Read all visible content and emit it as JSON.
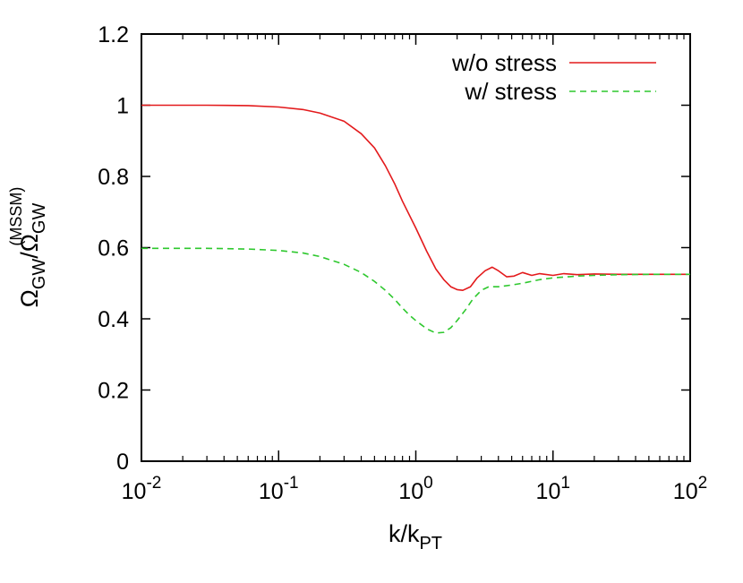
{
  "chart_data": {
    "type": "line",
    "xscale": "log",
    "xlim": [
      0.01,
      100
    ],
    "ylim": [
      0,
      1.2
    ],
    "y_ticks": [
      "0",
      "0.2",
      "0.4",
      "0.6",
      "0.8",
      "1",
      "1.2"
    ],
    "x_ticks": [
      {
        "base": "10",
        "exp": "-2"
      },
      {
        "base": "10",
        "exp": "-1"
      },
      {
        "base": "10",
        "exp": "0"
      },
      {
        "base": "10",
        "exp": "1"
      },
      {
        "base": "10",
        "exp": "2"
      }
    ],
    "xlabel": {
      "main": "k/k",
      "sub": "PT"
    },
    "ylabel": {
      "a": "Ω",
      "a_sub": "GW",
      "slash": "/Ω",
      "b_sub": "GW",
      "b_sup": "(MSSM)"
    },
    "legend_position": "top-right",
    "grid": false,
    "series": [
      {
        "name": "w/o stress",
        "color": "#e31a1c",
        "dash": "solid",
        "points": [
          [
            0.01,
            1.0
          ],
          [
            0.03,
            1.0
          ],
          [
            0.06,
            0.999
          ],
          [
            0.1,
            0.995
          ],
          [
            0.15,
            0.988
          ],
          [
            0.2,
            0.978
          ],
          [
            0.3,
            0.955
          ],
          [
            0.4,
            0.92
          ],
          [
            0.5,
            0.88
          ],
          [
            0.6,
            0.83
          ],
          [
            0.7,
            0.78
          ],
          [
            0.8,
            0.73
          ],
          [
            1.0,
            0.655
          ],
          [
            1.2,
            0.59
          ],
          [
            1.4,
            0.54
          ],
          [
            1.6,
            0.51
          ],
          [
            1.8,
            0.49
          ],
          [
            2.0,
            0.482
          ],
          [
            2.2,
            0.48
          ],
          [
            2.5,
            0.49
          ],
          [
            2.8,
            0.515
          ],
          [
            3.2,
            0.535
          ],
          [
            3.6,
            0.545
          ],
          [
            4.0,
            0.535
          ],
          [
            4.6,
            0.518
          ],
          [
            5.2,
            0.52
          ],
          [
            6.0,
            0.53
          ],
          [
            7.0,
            0.522
          ],
          [
            8.0,
            0.527
          ],
          [
            10.0,
            0.522
          ],
          [
            12.0,
            0.527
          ],
          [
            15.0,
            0.524
          ],
          [
            20.0,
            0.526
          ],
          [
            30.0,
            0.525
          ],
          [
            50.0,
            0.525
          ],
          [
            100.0,
            0.525
          ]
        ]
      },
      {
        "name": "w/ stress",
        "color": "#2ec82e",
        "dash": "dashed",
        "points": [
          [
            0.01,
            0.598
          ],
          [
            0.03,
            0.598
          ],
          [
            0.06,
            0.596
          ],
          [
            0.1,
            0.592
          ],
          [
            0.15,
            0.585
          ],
          [
            0.2,
            0.575
          ],
          [
            0.3,
            0.553
          ],
          [
            0.4,
            0.53
          ],
          [
            0.5,
            0.505
          ],
          [
            0.6,
            0.48
          ],
          [
            0.7,
            0.455
          ],
          [
            0.8,
            0.43
          ],
          [
            0.9,
            0.41
          ],
          [
            1.0,
            0.395
          ],
          [
            1.2,
            0.372
          ],
          [
            1.4,
            0.36
          ],
          [
            1.6,
            0.362
          ],
          [
            1.8,
            0.375
          ],
          [
            2.0,
            0.395
          ],
          [
            2.3,
            0.425
          ],
          [
            2.6,
            0.455
          ],
          [
            3.0,
            0.48
          ],
          [
            3.4,
            0.49
          ],
          [
            4.0,
            0.49
          ],
          [
            5.0,
            0.495
          ],
          [
            6.0,
            0.5
          ],
          [
            8.0,
            0.51
          ],
          [
            10.0,
            0.515
          ],
          [
            15.0,
            0.52
          ],
          [
            20.0,
            0.522
          ],
          [
            30.0,
            0.524
          ],
          [
            50.0,
            0.525
          ],
          [
            100.0,
            0.525
          ]
        ]
      }
    ]
  }
}
